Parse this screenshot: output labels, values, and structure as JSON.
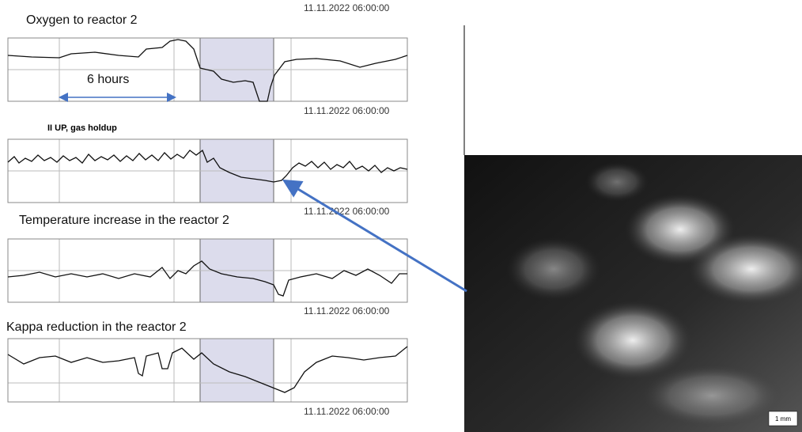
{
  "top_timestamp": "11.11.2022 06:00:00",
  "panels": [
    {
      "title": "Oxygen to reactor 2",
      "timestamp": "11.11.2022 06:00:00"
    },
    {
      "title": "II UP, gas holdup",
      "timestamp": "11.11.2022 06:00:00"
    },
    {
      "title": "Temperature increase in the reactor 2",
      "timestamp": "11.11.2022 06:00:00"
    },
    {
      "title": "Kappa reduction in the reactor 2",
      "timestamp": "11.11.2022 06:00:00"
    }
  ],
  "annotation": "6 hours",
  "scale_bar": "1 mm"
}
